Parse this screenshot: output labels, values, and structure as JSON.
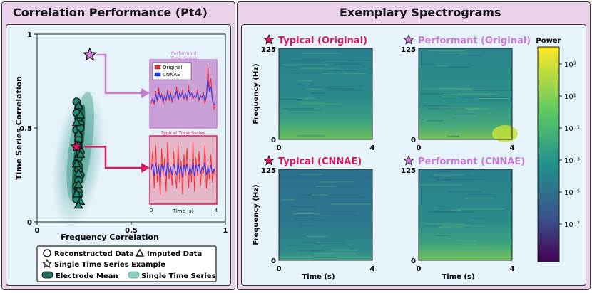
{
  "left_title": "Correlation Performance (Pt4)",
  "right_title": "Exemplary Spectrograms",
  "colors": {
    "panel_bg": "#ecd3ec",
    "inner_bg": "#e6f3fb",
    "typical": "#d81b60",
    "performant": "#c77dd1",
    "original_line": "#ff2b2b",
    "cnnae_line": "#1f3cff",
    "scatter": "#1c8a74"
  },
  "chart_data": [
    {
      "type": "scatter",
      "title": "Correlation Performance (Pt4)",
      "xlabel": "Frequency Correlation",
      "ylabel": "Time Series Correlation",
      "xlim": [
        0,
        1
      ],
      "ylim": [
        0,
        1
      ],
      "xticks": [
        "0",
        "0.5",
        "1"
      ],
      "yticks": [
        "0",
        "0.5",
        "1"
      ],
      "series": [
        {
          "name": "Reconstructed Data",
          "marker": "circle",
          "x": [
            0.21,
            0.22,
            0.21,
            0.22,
            0.23,
            0.21,
            0.22,
            0.22,
            0.21,
            0.23,
            0.22,
            0.21,
            0.22,
            0.23,
            0.22,
            0.21,
            0.22,
            0.22,
            0.21,
            0.22,
            0.23,
            0.22
          ],
          "y": [
            0.64,
            0.61,
            0.58,
            0.55,
            0.52,
            0.49,
            0.46,
            0.43,
            0.4,
            0.37,
            0.34,
            0.31,
            0.28,
            0.25,
            0.22,
            0.19,
            0.16,
            0.14,
            0.12,
            0.44,
            0.5,
            0.3
          ]
        },
        {
          "name": "Imputed Data",
          "marker": "triangle",
          "x": [
            0.22,
            0.23,
            0.21,
            0.22,
            0.22,
            0.23,
            0.21,
            0.22,
            0.22,
            0.21,
            0.23,
            0.22
          ],
          "y": [
            0.62,
            0.57,
            0.53,
            0.47,
            0.41,
            0.36,
            0.31,
            0.26,
            0.2,
            0.15,
            0.11,
            0.09
          ]
        },
        {
          "name": "Single Time Series Example",
          "marker": "star",
          "points": [
            {
              "label": "Performant",
              "x": 0.28,
              "y": 0.89
            },
            {
              "label": "Typical",
              "x": 0.21,
              "y": 0.4
            }
          ]
        },
        {
          "name": "Electrode Mean",
          "marker": "ellipse"
        },
        {
          "name": "Single Time Series",
          "marker": "cloud"
        }
      ]
    },
    {
      "type": "line",
      "title_line1": "Performant",
      "title_line2": "Time Series",
      "legend": [
        "Original",
        "CNNAE"
      ],
      "series": [
        {
          "name": "Original",
          "values": [
            0.3,
            0.4,
            0.28,
            0.52,
            0.33,
            0.58,
            0.38,
            0.48,
            0.3,
            0.46,
            0.35,
            0.55,
            0.36,
            0.5,
            0.32,
            0.44,
            0.4,
            0.6,
            0.35,
            0.5,
            0.42,
            0.55,
            0.38,
            0.48,
            0.36,
            0.62,
            0.42,
            0.5,
            0.38,
            0.45,
            0.4,
            0.55,
            0.35,
            0.45,
            0.4,
            0.5,
            0.3,
            0.42,
            0.95,
            0.55,
            0.75,
            0.35,
            0.2,
            0.3
          ]
        },
        {
          "name": "CNNAE",
          "values": [
            0.35,
            0.38,
            0.32,
            0.46,
            0.38,
            0.5,
            0.4,
            0.45,
            0.35,
            0.43,
            0.38,
            0.5,
            0.4,
            0.47,
            0.36,
            0.42,
            0.42,
            0.52,
            0.38,
            0.48,
            0.44,
            0.5,
            0.4,
            0.46,
            0.4,
            0.54,
            0.44,
            0.48,
            0.41,
            0.44,
            0.42,
            0.5,
            0.38,
            0.43,
            0.42,
            0.47,
            0.36,
            0.44,
            0.72,
            0.52,
            0.6,
            0.38,
            0.28,
            0.32
          ]
        }
      ]
    },
    {
      "type": "line",
      "title": "Typical Time Series",
      "xlabel": "Time (s)",
      "xticks": [
        "0",
        "4"
      ],
      "xlim": [
        0,
        4
      ],
      "series": [
        {
          "name": "Original",
          "values": [
            0.5,
            0.8,
            0.2,
            0.9,
            0.3,
            0.6,
            0.1,
            0.85,
            0.4,
            0.7,
            0.15,
            0.95,
            0.35,
            0.55,
            0.25,
            0.8,
            0.45,
            0.2,
            0.9,
            0.3,
            0.65,
            0.1,
            0.75,
            0.4,
            0.85,
            0.2,
            0.6,
            0.3,
            0.95,
            0.15,
            0.7,
            0.4,
            0.8,
            0.25,
            0.55,
            0.45,
            0.9,
            0.2,
            0.6,
            0.35,
            0.75,
            0.3,
            0.5,
            0.4
          ]
        },
        {
          "name": "CNNAE",
          "values": [
            0.5,
            0.6,
            0.4,
            0.62,
            0.45,
            0.55,
            0.38,
            0.6,
            0.48,
            0.58,
            0.4,
            0.62,
            0.46,
            0.54,
            0.42,
            0.6,
            0.5,
            0.42,
            0.62,
            0.45,
            0.56,
            0.38,
            0.58,
            0.48,
            0.6,
            0.42,
            0.55,
            0.45,
            0.62,
            0.4,
            0.58,
            0.48,
            0.6,
            0.44,
            0.54,
            0.5,
            0.62,
            0.42,
            0.55,
            0.46,
            0.58,
            0.45,
            0.52,
            0.48
          ]
        }
      ]
    },
    {
      "type": "heatmap",
      "title": "Exemplary Spectrograms",
      "ylabel": "Frequency (Hz)",
      "xlabel": "Time (s)",
      "yticks": [
        "125",
        "0"
      ],
      "xticks": [
        "0",
        "4"
      ],
      "panels": [
        {
          "label": "Typical (Original)",
          "kind": "typical"
        },
        {
          "label": "Performant (Original)",
          "kind": "performant"
        },
        {
          "label": "Typical (CNNAE)",
          "kind": "typical"
        },
        {
          "label": "Performant (CNNAE)",
          "kind": "performant"
        }
      ],
      "colorbar": {
        "label": "Power",
        "ticks": [
          "10³",
          "10¹",
          "10⁻¹",
          "10⁻³",
          "10⁻⁵",
          "10⁻⁷"
        ]
      }
    }
  ]
}
